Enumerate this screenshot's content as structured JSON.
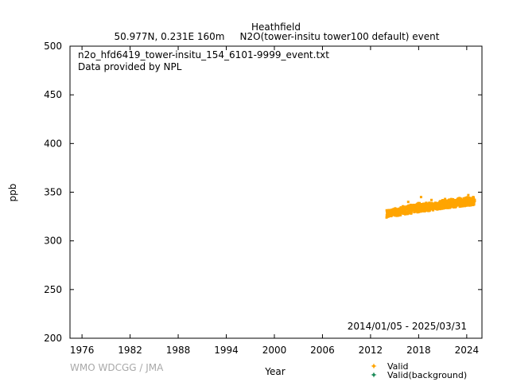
{
  "header": {
    "station": "Heathfield",
    "location": "50.977N, 0.231E 160m",
    "series_title": "N2O(tower-insitu tower100 default) event"
  },
  "info": {
    "filename": "n2o_hfd6419_tower-insitu_154_6101-9999_event.txt",
    "provider": "Data provided by NPL",
    "date_range": "2014/01/05 - 2025/03/31"
  },
  "footer": {
    "credit": "WMO WDCGG / JMA"
  },
  "colors": {
    "valid": "#ffa500",
    "valid_background": "#1e8c5a"
  },
  "chart_data": {
    "type": "scatter",
    "xlabel": "Year",
    "ylabel": "ppb",
    "xlim": [
      1974.5,
      2025.9
    ],
    "ylim": [
      200,
      500
    ],
    "xticks": [
      1976,
      1982,
      1988,
      1994,
      2000,
      2006,
      2012,
      2018,
      2024
    ],
    "yticks": [
      200,
      250,
      300,
      350,
      400,
      450,
      500
    ],
    "legend": {
      "position": "bottom-right",
      "entries": [
        "Valid",
        "Valid(background)"
      ]
    },
    "series": [
      {
        "name": "Valid",
        "x": [
          2014.0,
          2014.5,
          2015.0,
          2015.5,
          2016.0,
          2016.5,
          2017.0,
          2017.5,
          2018.0,
          2018.5,
          2019.0,
          2019.5,
          2020.0,
          2020.5,
          2021.0,
          2021.5,
          2022.0,
          2022.5,
          2023.0,
          2023.5,
          2024.0,
          2024.5,
          2025.0
        ],
        "y": [
          327.0,
          328.0,
          328.5,
          329.0,
          329.5,
          330.5,
          331.0,
          332.0,
          332.5,
          333.0,
          333.5,
          334.0,
          334.5,
          335.0,
          336.0,
          336.5,
          337.0,
          337.5,
          338.0,
          338.5,
          339.0,
          339.5,
          340.0
        ],
        "spread_upper": [
          5,
          4,
          5,
          4,
          6,
          5,
          6,
          5,
          7,
          5,
          6,
          5,
          5,
          5,
          6,
          5,
          6,
          5,
          6,
          5,
          6,
          5,
          5
        ],
        "spread_lower": [
          3,
          3,
          3,
          3,
          3,
          3,
          3,
          3,
          3,
          3,
          3,
          3,
          3,
          3,
          3,
          3,
          3,
          3,
          3,
          3,
          3,
          3,
          3
        ],
        "spikes": [
          [
            2016.7,
            340.0
          ],
          [
            2018.3,
            345.0
          ],
          [
            2019.6,
            342.0
          ],
          [
            2021.3,
            343.0
          ],
          [
            2023.1,
            344.0
          ],
          [
            2024.2,
            347.0
          ],
          [
            2024.8,
            345.0
          ]
        ]
      },
      {
        "name": "Valid(background)",
        "x": [],
        "y": []
      }
    ]
  }
}
